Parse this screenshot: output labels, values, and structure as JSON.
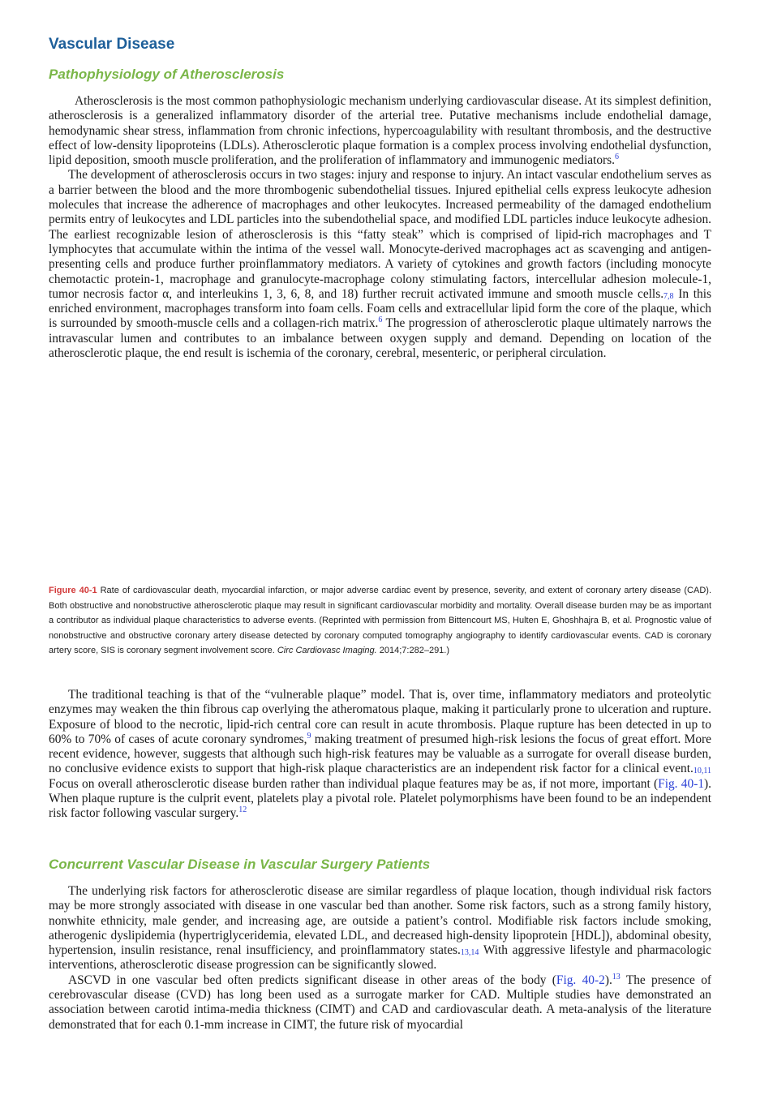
{
  "title": "Vascular Disease",
  "sections": [
    {
      "heading": "Pathophysiology of Atherosclerosis",
      "paragraphs": [
        [
          "Atherosclerosis is the most common pathophysiologic mechanism underlying cardiovascular disease. At its simplest definition, atherosclerosis is a generalized inflammatory disorder of the arterial tree. Putative mechanisms include endothelial damage, hemodynamic shear stress, inflammation from chronic infections, hypercoagulability with resultant thrombosis, and the destructive effect of low-density lipoproteins (LDLs). Atherosclerotic plaque formation is a complex process involving endothelial dysfunction, lipid deposition, smooth muscle proliferation, and the proliferation of inflammatory and immunogenic mediators.",
          {
            "sup": "6"
          }
        ],
        [
          "The development of atherosclerosis occurs in two stages: injury and response to injury. An intact vascular endothelium serves as a barrier between the blood and the more thrombogenic subendothelial tissues. Injured epithelial cells express leukocyte adhesion molecules that increase the adherence of macrophages and other leukocytes. Increased permeability of the damaged endothelium permits entry of leukocytes and LDL particles into the subendothelial space, and modified LDL particles induce leukocyte adhesion. The earliest recognizable lesion of atherosclerosis is this “fatty steak” which is comprised of lipid-rich macrophages and T lymphocytes that accumulate within the intima of the vessel wall. Monocyte-derived macrophages act as scavenging and antigen-presenting cells and produce further proinflammatory mediators. A variety of cytokines and growth factors (including monocyte chemotactic protein-1, macrophage and granulocyte-macrophage colony stimulating factors, intercellular adhesion molecule-1, tumor necrosis factor α, and interleukins 1, 3, 6, 8, and 18) further recruit activated immune and smooth muscle cells.",
          {
            "sub": "7,8"
          },
          " In this enriched environment, macrophages transform into foam cells. Foam cells and extracellular lipid form the core of the plaque, which is surrounded by smooth-muscle cells and a collagen-rich matrix.",
          {
            "sup": "6"
          },
          " The progression of atherosclerotic plaque ultimately narrows the intravascular lumen and contributes to an imbalance between oxygen supply and demand. Depending on location of the atherosclerotic plaque, the end result is ischemia of the coronary, cerebral, mesenteric, or peripheral circulation."
        ]
      ]
    },
    {
      "caption": [
        {
          "label": "Figure 40-1"
        },
        " Rate of cardiovascular death, myocardial infarction, or major adverse cardiac event by presence, severity, and extent of coronary artery disease (CAD). Both obstructive and nonobstructive atherosclerotic plaque may result in significant cardiovascular morbidity and mortality. Overall disease burden may be as important a contributor as individual plaque characteristics to adverse events. (Reprinted with permission from Bittencourt MS, Hulten E, Ghoshhajra B, et al. Prognostic value of nonobstructive and obstructive coronary artery disease detected by coronary computed tomography angiography to identify cardiovascular events. CAD is coronary artery score, SIS is coronary segment involvement score. ",
        {
          "italic": "Circ Cardiovasc Imaging."
        },
        " 2014;7:282–291.)"
      ],
      "paragraphs": [
        [
          "The traditional teaching is that of the “vulnerable plaque” model. That is, over time, inflammatory mediators and proteolytic enzymes may weaken the thin fibrous cap overlying the atheromatous plaque, making it particularly prone to ulceration and rupture. Exposure of blood to the necrotic, lipid-rich central core can result in acute thrombosis. Plaque rupture has been detected in up to 60% to 70% of cases of acute coronary syndromes,",
          {
            "sup": "9"
          },
          " making treatment of presumed high-risk lesions the focus of great effort. More recent evidence, however, suggests that although such high-risk features may be valuable as a surrogate for overall disease burden, no conclusive evidence exists to support that high-risk plaque characteristics are an independent risk factor for a clinical event.",
          {
            "sub": "10,11"
          },
          " Focus on overall atherosclerotic disease burden rather than individual plaque features may be as, if not more, important (",
          {
            "link": "Fig. 40-1"
          },
          "). When plaque rupture is the culprit event, platelets play a pivotal role. Platelet polymorphisms have been found to be an independent risk factor following vascular surgery.",
          {
            "sup": "12"
          }
        ]
      ]
    },
    {
      "heading": "Concurrent Vascular Disease in Vascular Surgery Patients",
      "paragraphs": [
        [
          "The underlying risk factors for atherosclerotic disease are similar regardless of plaque location, though individual risk factors may be more strongly associated with disease in one vascular bed than another. Some risk factors, such as a strong family history, nonwhite ethnicity, male gender, and increasing age, are outside a patient’s control. Modifiable risk factors include smoking, atherogenic dyslipidemia (hypertriglyceridemia, elevated LDL, and decreased high-density lipoprotein [HDL]), abdominal obesity, hypertension, insulin resistance, renal insufficiency, and proinflammatory states.",
          {
            "sub": "13,14"
          },
          " With aggressive lifestyle and pharmacologic interventions, atherosclerotic disease progression can be significantly slowed."
        ],
        [
          "ASCVD in one vascular bed often predicts significant disease in other areas of the body (",
          {
            "link": "Fig. 40-2"
          },
          ").",
          {
            "sup": "13"
          },
          " The presence of cerebrovascular disease (CVD) has long been used as a surrogate marker for CAD. Multiple studies have demonstrated an association between carotid intima-media thickness (CIMT) and CAD and cardiovascular death. A meta-analysis of the literature demonstrated that for each 0.1-mm increase in CIMT, the future risk of myocardial"
        ]
      ]
    }
  ]
}
